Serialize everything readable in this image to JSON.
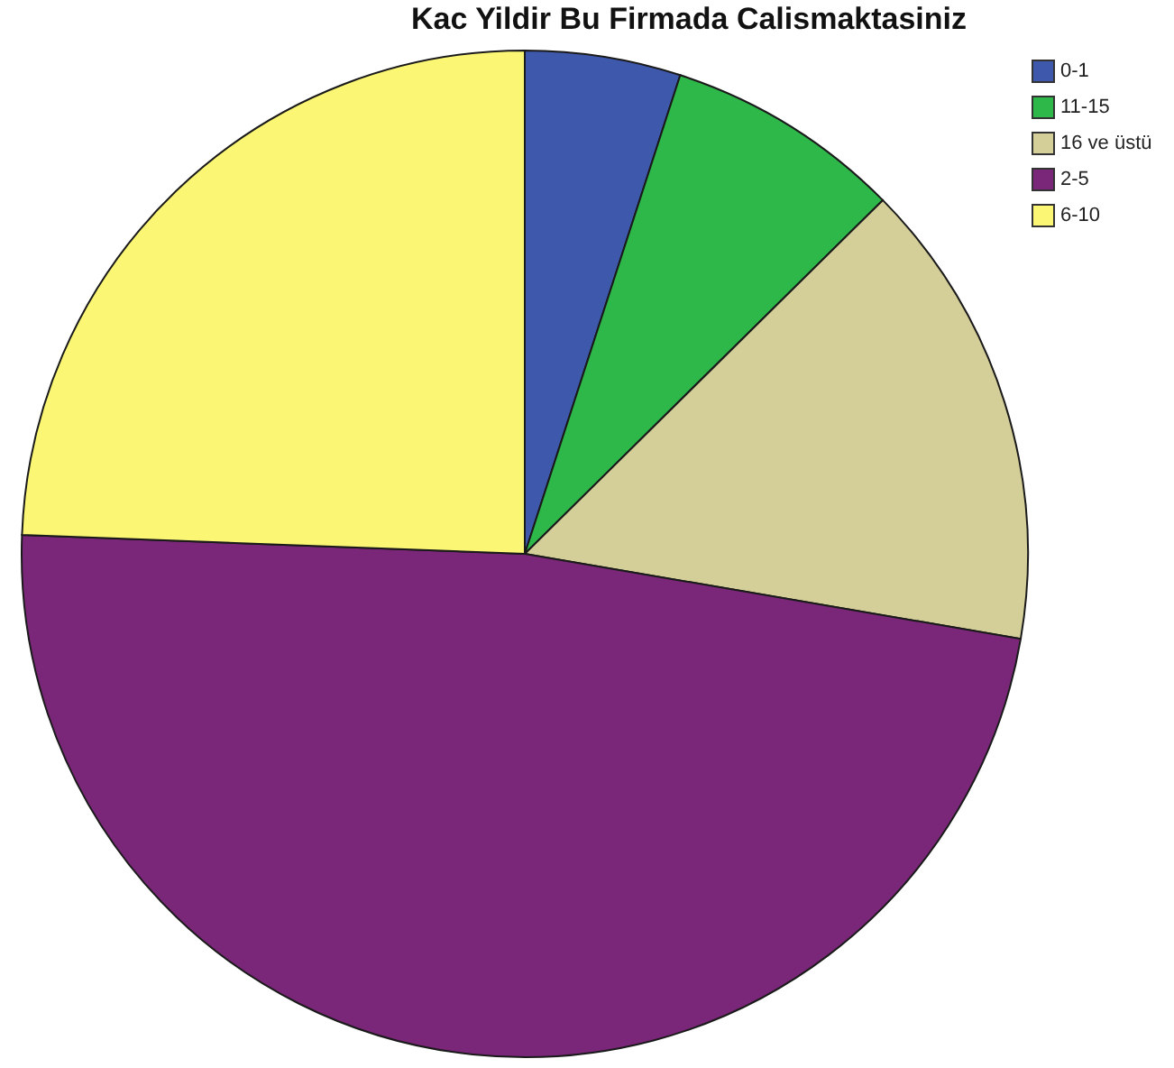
{
  "chart_data": {
    "type": "pie",
    "title": "Kac Yildir Bu Firmada Calismaktasiniz",
    "categories": [
      "0-1",
      "11-15",
      "16 ve üstü",
      "2-5",
      "6-10"
    ],
    "values": [
      5.0,
      7.6,
      15.1,
      47.9,
      24.4
    ],
    "colors": [
      "#3e58ac",
      "#2fb84a",
      "#d4cf98",
      "#7b2779",
      "#fbf774"
    ],
    "legend": "top right"
  }
}
